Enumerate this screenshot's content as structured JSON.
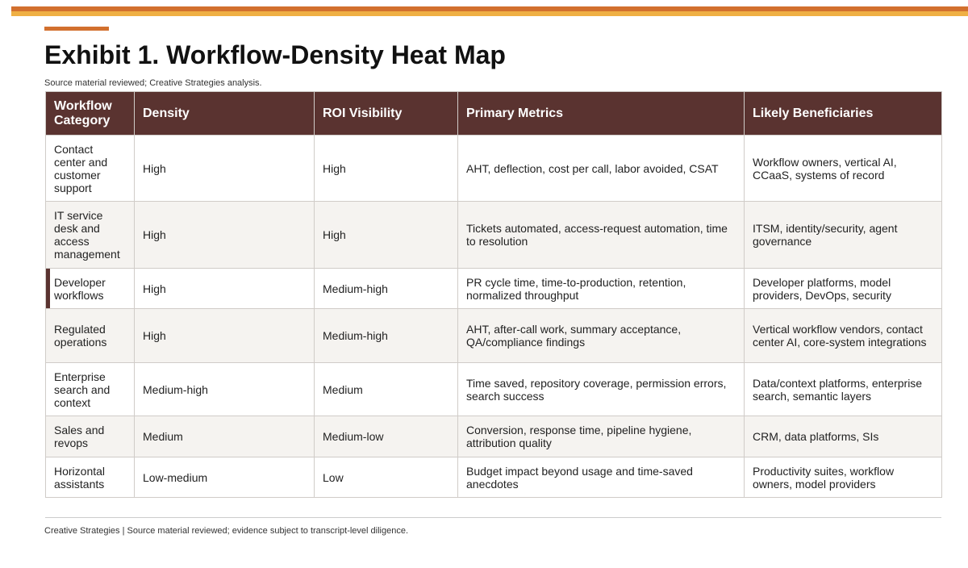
{
  "header": {
    "title": "Exhibit 1. Workflow-Density Heat Map",
    "source": "Source material reviewed; Creative Strategies analysis."
  },
  "table": {
    "columns": [
      "Workflow Category",
      "Density",
      "ROI Visibility",
      "Primary Metrics",
      "Likely Beneficiaries"
    ],
    "rows": [
      [
        "Contact center and customer support",
        "High",
        "High",
        "AHT, deflection, cost per call, labor avoided, CSAT",
        "Workflow owners, vertical AI, CCaaS, systems of record"
      ],
      [
        "IT service desk and access management",
        "High",
        "High",
        "Tickets automated, access-request automation, time to resolution",
        "ITSM, identity/security, agent governance"
      ],
      [
        "Developer workflows",
        "High",
        "Medium-high",
        "PR cycle time, time-to-production, retention, normalized throughput",
        "Developer platforms, model providers, DevOps, security"
      ],
      [
        "Regulated operations",
        "High",
        "Medium-high",
        "AHT, after-call work, summary acceptance, QA/compliance findings",
        "Vertical workflow vendors, contact center AI, core-system integrations"
      ],
      [
        "Enterprise search and context",
        "Medium-high",
        "Medium",
        "Time saved, repository coverage, permission errors, search success",
        "Data/context platforms, enterprise search, semantic layers"
      ],
      [
        "Sales and revops",
        "Medium",
        "Medium-low",
        "Conversion, response time, pipeline hygiene, attribution quality",
        "CRM, data platforms, SIs"
      ],
      [
        "Horizontal assistants",
        "Low-medium",
        "Low",
        "Budget impact beyond usage and time-saved anecdotes",
        "Productivity suites, workflow owners, model providers"
      ]
    ]
  },
  "footer": "Creative Strategies | Source material reviewed; evidence subject to transcript-level diligence."
}
